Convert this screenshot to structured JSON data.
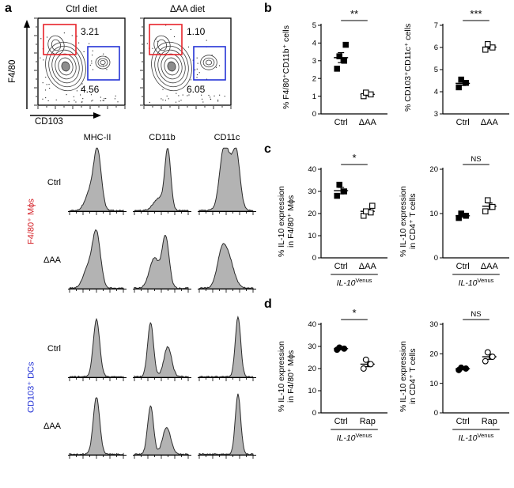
{
  "panels": {
    "a": "a",
    "b": "b",
    "c": "c",
    "d": "d"
  },
  "panel_a": {
    "flow": {
      "y_axis_label": "F4/80",
      "x_axis_label": "CD103",
      "gate_colors": {
        "red": "#e8232a",
        "blue": "#2433d6"
      },
      "plots": [
        {
          "title": "Ctrl diet",
          "red_gate_pct": "3.21",
          "blue_gate_pct": "4.56",
          "seed": 7,
          "cd103_blob_scale": 1.0
        },
        {
          "title": "ΔAA diet",
          "red_gate_pct": "1.10",
          "blue_gate_pct": "6.05",
          "seed": 13,
          "cd103_blob_scale": 1.15
        }
      ]
    },
    "histograms": {
      "columns": [
        "MHC-II",
        "CD11b",
        "CD11c"
      ],
      "groups": [
        {
          "name": "F4/80⁺ Mϕs",
          "color": "#d42027",
          "rows": [
            {
              "label": "Ctrl",
              "cells": [
                {
                  "peaks": [
                    [
                      0.52,
                      0.95,
                      0.07
                    ],
                    [
                      0.38,
                      0.3,
                      0.09
                    ]
                  ]
                },
                {
                  "peaks": [
                    [
                      0.62,
                      1.0,
                      0.055
                    ],
                    [
                      0.45,
                      0.2,
                      0.1
                    ]
                  ]
                },
                {
                  "peaks": [
                    [
                      0.56,
                      0.8,
                      0.12
                    ],
                    [
                      0.7,
                      0.6,
                      0.06
                    ],
                    [
                      0.44,
                      0.55,
                      0.07
                    ]
                  ]
                }
              ]
            },
            {
              "label": "ΔAA",
              "cells": [
                {
                  "peaks": [
                    [
                      0.5,
                      0.9,
                      0.075
                    ],
                    [
                      0.34,
                      0.32,
                      0.09
                    ]
                  ]
                },
                {
                  "peaks": [
                    [
                      0.58,
                      0.85,
                      0.065
                    ],
                    [
                      0.37,
                      0.5,
                      0.09
                    ]
                  ]
                },
                {
                  "peaks": [
                    [
                      0.52,
                      0.55,
                      0.11
                    ],
                    [
                      0.4,
                      0.35,
                      0.08
                    ]
                  ]
                }
              ]
            }
          ]
        },
        {
          "name": "CD103⁺ DCs",
          "color": "#2433d6",
          "rows": [
            {
              "label": "Ctrl",
              "cells": [
                {
                  "peaks": [
                    [
                      0.5,
                      0.95,
                      0.06
                    ]
                  ]
                },
                {
                  "peaks": [
                    [
                      0.3,
                      0.9,
                      0.055
                    ],
                    [
                      0.62,
                      0.5,
                      0.07
                    ]
                  ]
                },
                {
                  "peaks": [
                    [
                      0.72,
                      1.0,
                      0.05
                    ]
                  ]
                }
              ]
            },
            {
              "label": "ΔAA",
              "cells": [
                {
                  "peaks": [
                    [
                      0.5,
                      0.95,
                      0.06
                    ]
                  ]
                },
                {
                  "peaks": [
                    [
                      0.3,
                      0.8,
                      0.055
                    ],
                    [
                      0.6,
                      0.45,
                      0.075
                    ]
                  ]
                },
                {
                  "peaks": [
                    [
                      0.72,
                      1.0,
                      0.05
                    ]
                  ]
                }
              ]
            }
          ]
        }
      ]
    }
  },
  "chart_data": [
    {
      "id": "b1",
      "panel": "b",
      "type": "scatter",
      "marker": "square",
      "ylabel": "% F4/80⁺CD11b⁺ cells",
      "ylim": [
        0,
        5
      ],
      "yticks": [
        0,
        1,
        2,
        3,
        4,
        5
      ],
      "significance": "**",
      "groups": [
        {
          "label": "Ctrl",
          "fill": "filled",
          "values": [
            2.55,
            3.0,
            3.25,
            3.9
          ]
        },
        {
          "label": "ΔAA",
          "fill": "open",
          "values": [
            1.0,
            1.1,
            1.2
          ]
        }
      ]
    },
    {
      "id": "b2",
      "panel": "b",
      "type": "scatter",
      "marker": "square",
      "ylabel": "% CD103⁺CD11c⁺ cells",
      "ylim": [
        3,
        7
      ],
      "yticks": [
        3,
        4,
        5,
        6,
        7
      ],
      "significance": "***",
      "groups": [
        {
          "label": "Ctrl",
          "fill": "filled",
          "values": [
            4.2,
            4.4,
            4.55
          ]
        },
        {
          "label": "ΔAA",
          "fill": "open",
          "values": [
            5.9,
            6.0,
            6.15
          ]
        }
      ]
    },
    {
      "id": "c1",
      "panel": "c",
      "type": "scatter",
      "marker": "square",
      "ylabel": "% IL-10 expression\nin F4/80⁺ Mϕs",
      "ylim": [
        0,
        40
      ],
      "yticks": [
        0,
        10,
        20,
        30,
        40
      ],
      "significance": "*",
      "xaxis_sub": {
        "main": "IL-10",
        "sup": "Venus"
      },
      "groups": [
        {
          "label": "Ctrl",
          "fill": "filled",
          "values": [
            28,
            30,
            33
          ]
        },
        {
          "label": "ΔAA",
          "fill": "open",
          "values": [
            19,
            20.5,
            21,
            23.5
          ]
        }
      ]
    },
    {
      "id": "c2",
      "panel": "c",
      "type": "scatter",
      "marker": "square",
      "ylabel": "% IL-10 expression\nin CD4⁺ T cells",
      "ylim": [
        0,
        20
      ],
      "yticks": [
        0,
        10,
        20
      ],
      "significance": "NS",
      "xaxis_sub": {
        "main": "IL-10",
        "sup": "Venus"
      },
      "groups": [
        {
          "label": "Ctrl",
          "fill": "filled",
          "values": [
            9,
            9.5,
            10
          ]
        },
        {
          "label": "ΔAA",
          "fill": "open",
          "values": [
            10.5,
            11.5,
            13
          ]
        }
      ]
    },
    {
      "id": "d1",
      "panel": "d",
      "type": "scatter",
      "marker": "circle",
      "ylabel": "% IL-10 expression\nin F4/80⁺ Mϕs",
      "ylim": [
        0,
        40
      ],
      "yticks": [
        0,
        10,
        20,
        30,
        40
      ],
      "significance": "*",
      "xaxis_sub": {
        "main": "IL-10",
        "sup": "Venus"
      },
      "groups": [
        {
          "label": "Ctrl",
          "fill": "filled",
          "values": [
            28.5,
            29,
            29.5
          ]
        },
        {
          "label": "Rap",
          "fill": "open",
          "values": [
            20,
            22,
            24
          ]
        }
      ]
    },
    {
      "id": "d2",
      "panel": "d",
      "type": "scatter",
      "marker": "circle",
      "ylabel": "% IL-10 expression\nin CD4⁺ T cells",
      "ylim": [
        0,
        30
      ],
      "yticks": [
        0,
        10,
        20,
        30
      ],
      "significance": "NS",
      "xaxis_sub": {
        "main": "IL-10",
        "sup": "Venus"
      },
      "groups": [
        {
          "label": "Ctrl",
          "fill": "filled",
          "values": [
            14.5,
            15,
            15.3
          ]
        },
        {
          "label": "Rap",
          "fill": "open",
          "values": [
            17.5,
            19,
            20.5
          ]
        }
      ]
    }
  ]
}
